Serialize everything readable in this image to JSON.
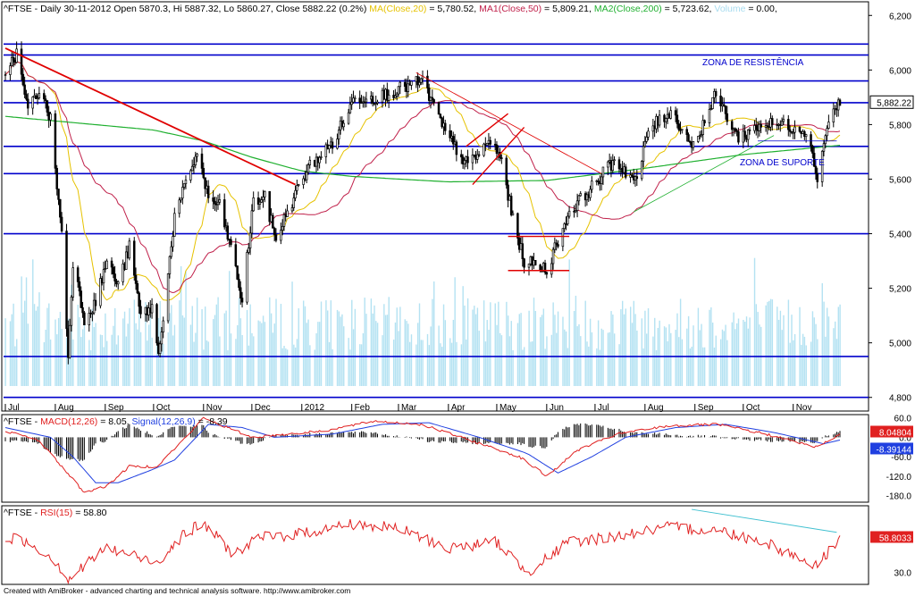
{
  "header": {
    "main": [
      {
        "text": "^FTSE - Daily 30-11-2012 Open 5870.3, Hi 5887.32, Lo 5860.27, Close 5882.22 (0.2%) ",
        "color": "#000000"
      },
      {
        "text": "MA(Close,20)",
        "color": "#e6c200"
      },
      {
        "text": " = 5,780.52, ",
        "color": "#000000"
      },
      {
        "text": "MA1(Close,50)",
        "color": "#c0204a"
      },
      {
        "text": " = 5,809.21, ",
        "color": "#000000"
      },
      {
        "text": "MA2(Close,200)",
        "color": "#20b030"
      },
      {
        "text": " = 5,723.62, ",
        "color": "#000000"
      },
      {
        "text": "Volume",
        "color": "#a8dcef"
      },
      {
        "text": " = 0.00,",
        "color": "#000000"
      }
    ],
    "macd": [
      {
        "text": "^FTSE - ",
        "color": "#000000"
      },
      {
        "text": "MACD(12,26)",
        "color": "#e02020"
      },
      {
        "text": " = 8.05, ",
        "color": "#000000"
      },
      {
        "text": "Signal(12,26,9)",
        "color": "#2040e0"
      },
      {
        "text": " = -8.39",
        "color": "#000000"
      }
    ],
    "rsi": [
      {
        "text": "^FTSE - ",
        "color": "#000000"
      },
      {
        "text": "RSI(15)",
        "color": "#e02020"
      },
      {
        "text": " = 58.80",
        "color": "#000000"
      }
    ]
  },
  "annotations": {
    "resistance": "ZONA DE RESISTÊNCIA",
    "support": "ZONA DE SUPORTE"
  },
  "footer": "Created with AmiBroker - advanced charting and technical analysis software. http://www.amibroker.com",
  "colors": {
    "candle": "#000000",
    "ma20": "#e6c200",
    "ma50": "#c0204a",
    "ma200": "#20b030",
    "volume": "#b4e2f2",
    "levels": "#0000cc",
    "trend": "#e00000",
    "macd": "#e02020",
    "signal": "#2040e0",
    "rsi": "#e02020",
    "rsi_trend": "#40c0d0"
  },
  "chart_data": [
    {
      "type": "candlestick",
      "name": "price",
      "ylim": [
        4750,
        6250
      ],
      "yticks": [
        "4,800",
        "5,000",
        "5,200",
        "5,400",
        "5,600",
        "5,800",
        "6,000",
        "6,200"
      ],
      "x_months": [
        "Jul",
        "Aug",
        "Sep",
        "Oct",
        "Nov",
        "Dec",
        "2012",
        "Feb",
        "Mar",
        "Apr",
        "May",
        "Jun",
        "Jul",
        "Aug",
        "Sep",
        "Oct",
        "Nov"
      ],
      "last_price_label": "5,882.22",
      "support_resistance_levels": [
        6095,
        6055,
        5960,
        5880,
        5720,
        5620,
        5400,
        4950,
        4800
      ],
      "close_path": [
        [
          "2011-07-01",
          6000
        ],
        [
          "2011-07-08",
          6060
        ],
        [
          "2011-07-15",
          5850
        ],
        [
          "2011-07-22",
          5930
        ],
        [
          "2011-07-29",
          5820
        ],
        [
          "2011-08-05",
          5400
        ],
        [
          "2011-08-09",
          4950
        ],
        [
          "2011-08-12",
          5300
        ],
        [
          "2011-08-19",
          5090
        ],
        [
          "2011-08-26",
          5150
        ],
        [
          "2011-09-02",
          5300
        ],
        [
          "2011-09-09",
          5210
        ],
        [
          "2011-09-16",
          5350
        ],
        [
          "2011-09-23",
          5100
        ],
        [
          "2011-09-30",
          5130
        ],
        [
          "2011-10-04",
          4950
        ],
        [
          "2011-10-14",
          5460
        ],
        [
          "2011-10-28",
          5700
        ],
        [
          "2011-11-04",
          5530
        ],
        [
          "2011-11-11",
          5500
        ],
        [
          "2011-11-18",
          5350
        ],
        [
          "2011-11-25",
          5150
        ],
        [
          "2011-12-02",
          5520
        ],
        [
          "2011-12-09",
          5530
        ],
        [
          "2011-12-16",
          5380
        ],
        [
          "2011-12-23",
          5480
        ],
        [
          "2011-12-30",
          5570
        ],
        [
          "2012-01-06",
          5650
        ],
        [
          "2012-01-20",
          5730
        ],
        [
          "2012-02-03",
          5900
        ],
        [
          "2012-02-17",
          5900
        ],
        [
          "2012-03-02",
          5930
        ],
        [
          "2012-03-16",
          5960
        ],
        [
          "2012-03-30",
          5770
        ],
        [
          "2012-04-13",
          5650
        ],
        [
          "2012-04-27",
          5740
        ],
        [
          "2012-05-04",
          5670
        ],
        [
          "2012-05-11",
          5450
        ],
        [
          "2012-05-18",
          5300
        ],
        [
          "2012-06-01",
          5270
        ],
        [
          "2012-06-15",
          5480
        ],
        [
          "2012-06-29",
          5570
        ],
        [
          "2012-07-13",
          5670
        ],
        [
          "2012-07-27",
          5590
        ],
        [
          "2012-08-03",
          5780
        ],
        [
          "2012-08-17",
          5850
        ],
        [
          "2012-08-31",
          5720
        ],
        [
          "2012-09-14",
          5910
        ],
        [
          "2012-09-28",
          5750
        ],
        [
          "2012-10-12",
          5800
        ],
        [
          "2012-10-26",
          5800
        ],
        [
          "2012-11-09",
          5780
        ],
        [
          "2012-11-16",
          5610
        ],
        [
          "2012-11-23",
          5820
        ],
        [
          "2012-11-30",
          5882.22
        ]
      ],
      "ma200_path": [
        [
          "2011-07-01",
          5830
        ],
        [
          "2011-10-01",
          5780
        ],
        [
          "2011-11-01",
          5740
        ],
        [
          "2011-12-01",
          5680
        ],
        [
          "2012-01-01",
          5630
        ],
        [
          "2012-02-01",
          5610
        ],
        [
          "2012-04-01",
          5590
        ],
        [
          "2012-06-01",
          5595
        ],
        [
          "2012-08-01",
          5640
        ],
        [
          "2012-10-01",
          5690
        ],
        [
          "2012-11-30",
          5724
        ]
      ]
    },
    {
      "type": "line",
      "name": "MACD",
      "ylim": [
        -200,
        70
      ],
      "yticks": [
        "60.0",
        "0.0",
        "-60.0",
        "-120.0",
        "-180.0"
      ],
      "last_labels": [
        "8.04804",
        "-8.39144"
      ],
      "series": [
        {
          "name": "MACD(12,26)",
          "points": [
            [
              "2011-07-01",
              20
            ],
            [
              "2011-07-22",
              -10
            ],
            [
              "2011-08-05",
              -90
            ],
            [
              "2011-08-19",
              -170
            ],
            [
              "2011-09-02",
              -150
            ],
            [
              "2011-09-16",
              -90
            ],
            [
              "2011-10-03",
              -90
            ],
            [
              "2011-10-21",
              0
            ],
            [
              "2011-11-01",
              60
            ],
            [
              "2011-11-21",
              20
            ],
            [
              "2011-12-01",
              0
            ],
            [
              "2012-01-15",
              20
            ],
            [
              "2012-02-15",
              50
            ],
            [
              "2012-03-15",
              40
            ],
            [
              "2012-04-15",
              -10
            ],
            [
              "2012-05-15",
              -60
            ],
            [
              "2012-06-01",
              -120
            ],
            [
              "2012-06-20",
              -40
            ],
            [
              "2012-07-15",
              10
            ],
            [
              "2012-08-15",
              35
            ],
            [
              "2012-09-15",
              40
            ],
            [
              "2012-10-15",
              10
            ],
            [
              "2012-11-15",
              -30
            ],
            [
              "2012-11-30",
              8.05
            ]
          ]
        },
        {
          "name": "Signal(12,26,9)",
          "points": [
            [
              "2011-07-01",
              30
            ],
            [
              "2011-07-29",
              0
            ],
            [
              "2011-08-12",
              -60
            ],
            [
              "2011-08-26",
              -140
            ],
            [
              "2011-09-09",
              -140
            ],
            [
              "2011-09-30",
              -100
            ],
            [
              "2011-10-14",
              -70
            ],
            [
              "2011-11-04",
              40
            ],
            [
              "2011-11-25",
              30
            ],
            [
              "2011-12-15",
              0
            ],
            [
              "2012-01-20",
              10
            ],
            [
              "2012-02-20",
              40
            ],
            [
              "2012-03-20",
              45
            ],
            [
              "2012-04-20",
              0
            ],
            [
              "2012-05-20",
              -50
            ],
            [
              "2012-06-08",
              -110
            ],
            [
              "2012-06-29",
              -60
            ],
            [
              "2012-07-20",
              0
            ],
            [
              "2012-08-20",
              30
            ],
            [
              "2012-09-20",
              40
            ],
            [
              "2012-10-20",
              15
            ],
            [
              "2012-11-20",
              -20
            ],
            [
              "2012-11-30",
              -8.39
            ]
          ]
        }
      ]
    },
    {
      "type": "line",
      "name": "RSI",
      "ylim": [
        20,
        85
      ],
      "yticks": [
        "30.0"
      ],
      "last_label": "58.8033",
      "series": [
        {
          "name": "RSI(15)",
          "points": [
            [
              "2011-07-01",
              60
            ],
            [
              "2011-07-15",
              55
            ],
            [
              "2011-08-01",
              40
            ],
            [
              "2011-08-09",
              24
            ],
            [
              "2011-08-19",
              35
            ],
            [
              "2011-09-01",
              50
            ],
            [
              "2011-09-15",
              45
            ],
            [
              "2011-10-03",
              38
            ],
            [
              "2011-10-20",
              62
            ],
            [
              "2011-11-01",
              70
            ],
            [
              "2011-11-20",
              45
            ],
            [
              "2011-12-05",
              58
            ],
            [
              "2012-01-01",
              62
            ],
            [
              "2012-02-01",
              70
            ],
            [
              "2012-03-01",
              66
            ],
            [
              "2012-04-01",
              50
            ],
            [
              "2012-05-01",
              55
            ],
            [
              "2012-05-20",
              30
            ],
            [
              "2012-06-15",
              55
            ],
            [
              "2012-07-15",
              60
            ],
            [
              "2012-08-15",
              67
            ],
            [
              "2012-09-15",
              65
            ],
            [
              "2012-10-15",
              55
            ],
            [
              "2012-11-15",
              35
            ],
            [
              "2012-11-30",
              58.8
            ]
          ]
        }
      ]
    }
  ]
}
